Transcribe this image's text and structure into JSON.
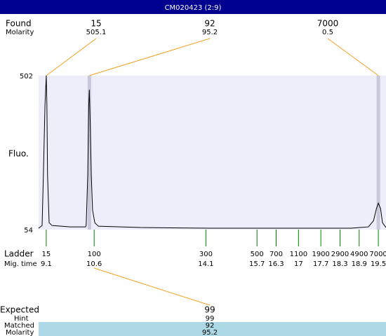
{
  "chart_data": {
    "type": "line",
    "title": "CM020423 (2:9)",
    "y_label": "Fluo.",
    "color": "#000000",
    "x": [
      8.86,
      8.97,
      9.01,
      9.06,
      9.1,
      9.12,
      9.14,
      9.19,
      9.28,
      9.85,
      10.33,
      10.35,
      10.4,
      10.43,
      10.45,
      10.48,
      10.51,
      10.55,
      10.62,
      10.73,
      12.05,
      14.25,
      16.44,
      18.64,
      19.19,
      19.35,
      19.44,
      19.5,
      19.57,
      19.63,
      19.74
    ],
    "values": [
      58,
      66,
      213,
      416,
      502,
      416,
      213,
      74,
      66,
      62,
      62,
      66,
      213,
      416,
      461,
      355,
      213,
      111,
      74,
      64,
      60,
      58,
      58,
      58,
      62,
      80,
      115,
      131,
      115,
      74,
      60
    ],
    "xlim": [
      8.86,
      19.74
    ],
    "ylim": [
      54,
      502
    ],
    "yticks": [
      54,
      502
    ],
    "grid": false,
    "found": {
      "label": "Found",
      "molarity_label": "Molarity",
      "sizes": [
        15,
        92,
        7000
      ],
      "molarities": [
        505.1,
        95.2,
        0.5
      ],
      "times": [
        9.1,
        10.45,
        19.5
      ],
      "highlight": [
        false,
        true,
        true
      ]
    },
    "ladder": {
      "label": "Ladder",
      "time_label": "Mig. time",
      "sizes": [
        15,
        100,
        300,
        500,
        700,
        1100,
        1900,
        2900,
        4900,
        7000
      ],
      "times": [
        9.1,
        10.6,
        14.1,
        15.7,
        16.3,
        17,
        17.7,
        18.3,
        18.9,
        19.5
      ]
    },
    "expected": {
      "label": "Expected",
      "value": 99,
      "hint_label": "Hint",
      "hint": 99,
      "matched_label": "Matched",
      "matched": 92,
      "molarity_label": "Molarity",
      "molarity": 95.2
    }
  }
}
